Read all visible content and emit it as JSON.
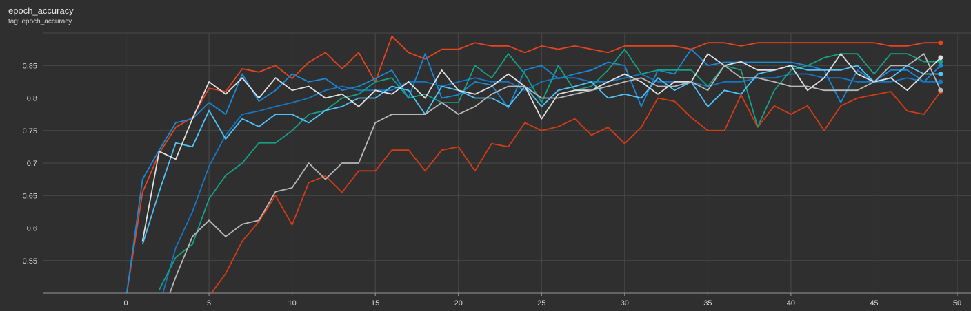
{
  "header": {
    "title": "epoch_accuracy",
    "subtitle": "tag: epoch_accuracy"
  },
  "chart_data": {
    "type": "line",
    "title": "epoch_accuracy",
    "subtitle": "tag: epoch_accuracy",
    "xlabel": "",
    "ylabel": "",
    "xlim": [
      -5,
      50
    ],
    "ylim": [
      0.5,
      0.9
    ],
    "x_ticks": [
      0,
      5,
      10,
      15,
      20,
      25,
      30,
      35,
      40,
      45,
      50
    ],
    "y_ticks": [
      0.55,
      0.6,
      0.65,
      0.7,
      0.75,
      0.8,
      0.85
    ],
    "grid": true,
    "background": "#2f2f2f",
    "series": [
      {
        "color": "#e8431f",
        "x": [
          0,
          1,
          2,
          3,
          4,
          5,
          6,
          7,
          8,
          9,
          10,
          11,
          12,
          13,
          14,
          15,
          16,
          17,
          18,
          19,
          20,
          21,
          22,
          23,
          24,
          25,
          26,
          27,
          28,
          29,
          30,
          31,
          32,
          33,
          34,
          35,
          36,
          37,
          38,
          39,
          40,
          41,
          42,
          43,
          44,
          45,
          46,
          47,
          48,
          49
        ],
        "y": [
          0.49,
          0.655,
          0.715,
          0.755,
          0.77,
          0.815,
          0.81,
          0.845,
          0.84,
          0.85,
          0.83,
          0.855,
          0.87,
          0.845,
          0.87,
          0.825,
          0.895,
          0.87,
          0.86,
          0.875,
          0.875,
          0.885,
          0.88,
          0.88,
          0.87,
          0.88,
          0.875,
          0.88,
          0.875,
          0.87,
          0.88,
          0.88,
          0.88,
          0.88,
          0.875,
          0.885,
          0.885,
          0.88,
          0.885,
          0.885,
          0.885,
          0.885,
          0.885,
          0.885,
          0.885,
          0.885,
          0.88,
          0.88,
          0.885,
          0.885
        ]
      },
      {
        "color": "#d53b15",
        "x": [
          5,
          6,
          7,
          8,
          9,
          10,
          11,
          12,
          13,
          14,
          15,
          16,
          17,
          18,
          19,
          20,
          21,
          22,
          23,
          24,
          25,
          26,
          27,
          28,
          29,
          30,
          31,
          32,
          33,
          34,
          35,
          36,
          37,
          38,
          39,
          40,
          41,
          42,
          43,
          44,
          45,
          46,
          47,
          48,
          49
        ],
        "y": [
          0.495,
          0.53,
          0.58,
          0.61,
          0.65,
          0.605,
          0.67,
          0.68,
          0.655,
          0.688,
          0.688,
          0.72,
          0.72,
          0.688,
          0.72,
          0.725,
          0.688,
          0.73,
          0.725,
          0.762,
          0.75,
          0.756,
          0.768,
          0.743,
          0.755,
          0.73,
          0.755,
          0.8,
          0.795,
          0.77,
          0.75,
          0.75,
          0.805,
          0.755,
          0.788,
          0.775,
          0.788,
          0.75,
          0.788,
          0.8,
          0.805,
          0.81,
          0.78,
          0.775,
          0.81
        ]
      },
      {
        "color": "#1a88d6",
        "x": [
          0,
          1,
          2,
          3,
          4,
          5,
          6,
          7,
          8,
          9,
          10,
          11,
          12,
          13,
          14,
          15,
          16,
          17,
          18,
          19,
          20,
          21,
          22,
          23,
          24,
          25,
          26,
          27,
          28,
          29,
          30,
          31,
          32,
          33,
          34,
          35,
          36,
          37,
          38,
          39,
          40,
          41,
          42,
          43,
          44,
          45,
          46,
          47,
          48,
          49
        ],
        "y": [
          0.49,
          0.675,
          0.72,
          0.762,
          0.768,
          0.793,
          0.775,
          0.837,
          0.795,
          0.812,
          0.837,
          0.825,
          0.83,
          0.812,
          0.818,
          0.83,
          0.843,
          0.8,
          0.868,
          0.8,
          0.805,
          0.825,
          0.82,
          0.785,
          0.843,
          0.85,
          0.83,
          0.837,
          0.843,
          0.855,
          0.85,
          0.787,
          0.843,
          0.837,
          0.875,
          0.85,
          0.855,
          0.855,
          0.855,
          0.855,
          0.855,
          0.85,
          0.843,
          0.793,
          0.843,
          0.825,
          0.843,
          0.843,
          0.825,
          0.85
        ]
      },
      {
        "color": "#1676c2",
        "x": [
          2,
          3,
          4,
          5,
          6,
          7,
          8,
          9,
          10,
          11,
          12,
          13,
          14,
          15,
          16,
          17,
          18,
          19,
          20,
          21,
          22,
          23,
          24,
          25,
          26,
          27,
          28,
          29,
          30,
          31,
          32,
          33,
          34,
          35,
          36,
          37,
          38,
          39,
          40,
          41,
          42,
          43,
          44,
          45,
          46,
          47,
          48,
          49
        ],
        "y": [
          0.48,
          0.57,
          0.625,
          0.695,
          0.743,
          0.775,
          0.78,
          0.787,
          0.793,
          0.8,
          0.812,
          0.818,
          0.812,
          0.812,
          0.812,
          0.825,
          0.825,
          0.818,
          0.825,
          0.831,
          0.825,
          0.825,
          0.812,
          0.825,
          0.831,
          0.831,
          0.825,
          0.825,
          0.831,
          0.837,
          0.825,
          0.825,
          0.825,
          0.818,
          0.825,
          0.825,
          0.831,
          0.831,
          0.837,
          0.837,
          0.831,
          0.831,
          0.825,
          0.825,
          0.825,
          0.831,
          0.825,
          0.825
        ]
      },
      {
        "color": "#16a085",
        "x": [
          2,
          3,
          4,
          5,
          6,
          7,
          8,
          9,
          10,
          11,
          12,
          13,
          14,
          15,
          16,
          17,
          18,
          19,
          20,
          21,
          22,
          23,
          24,
          25,
          26,
          27,
          28,
          29,
          30,
          31,
          32,
          33,
          34,
          35,
          36,
          37,
          38,
          39,
          40,
          41,
          42,
          43,
          44,
          45,
          46,
          47,
          48,
          49
        ],
        "y": [
          0.505,
          0.555,
          0.575,
          0.645,
          0.681,
          0.7,
          0.731,
          0.731,
          0.75,
          0.775,
          0.781,
          0.8,
          0.806,
          0.825,
          0.831,
          0.8,
          0.806,
          0.793,
          0.793,
          0.85,
          0.831,
          0.868,
          0.837,
          0.793,
          0.85,
          0.812,
          0.818,
          0.843,
          0.875,
          0.837,
          0.843,
          0.843,
          0.843,
          0.818,
          0.85,
          0.843,
          0.756,
          0.812,
          0.843,
          0.85,
          0.862,
          0.868,
          0.868,
          0.837,
          0.868,
          0.868,
          0.856,
          0.856
        ]
      },
      {
        "color": "#4fc3f7",
        "x": [
          1,
          2,
          3,
          4,
          5,
          6,
          7,
          8,
          9,
          10,
          11,
          12,
          13,
          14,
          15,
          16,
          17,
          18,
          19,
          20,
          21,
          22,
          23,
          24,
          25,
          26,
          27,
          28,
          29,
          30,
          31,
          32,
          33,
          34,
          35,
          36,
          37,
          38,
          39,
          40,
          41,
          42,
          43,
          44,
          45,
          46,
          47,
          48,
          49
        ],
        "y": [
          0.575,
          0.656,
          0.731,
          0.725,
          0.781,
          0.737,
          0.768,
          0.756,
          0.775,
          0.775,
          0.762,
          0.781,
          0.787,
          0.8,
          0.8,
          0.818,
          0.812,
          0.775,
          0.818,
          0.812,
          0.8,
          0.8,
          0.787,
          0.818,
          0.787,
          0.812,
          0.818,
          0.825,
          0.8,
          0.806,
          0.8,
          0.831,
          0.812,
          0.825,
          0.787,
          0.812,
          0.806,
          0.837,
          0.843,
          0.85,
          0.843,
          0.843,
          0.843,
          0.85,
          0.825,
          0.831,
          0.85,
          0.837,
          0.837
        ]
      },
      {
        "color": "#e0e0e0",
        "x": [
          1,
          2,
          3,
          4,
          5,
          6,
          7,
          8,
          9,
          10,
          11,
          12,
          13,
          14,
          15,
          16,
          17,
          18,
          19,
          20,
          21,
          22,
          23,
          24,
          25,
          26,
          27,
          28,
          29,
          30,
          31,
          32,
          33,
          34,
          35,
          36,
          37,
          38,
          39,
          40,
          41,
          42,
          43,
          44,
          45,
          46,
          47,
          48,
          49
        ],
        "y": [
          0.58,
          0.718,
          0.706,
          0.768,
          0.825,
          0.806,
          0.831,
          0.8,
          0.831,
          0.812,
          0.818,
          0.8,
          0.806,
          0.787,
          0.812,
          0.806,
          0.825,
          0.8,
          0.843,
          0.812,
          0.806,
          0.818,
          0.837,
          0.818,
          0.768,
          0.806,
          0.812,
          0.812,
          0.825,
          0.837,
          0.825,
          0.806,
          0.825,
          0.825,
          0.868,
          0.85,
          0.856,
          0.843,
          0.843,
          0.85,
          0.812,
          0.831,
          0.868,
          0.837,
          0.825,
          0.831,
          0.812,
          0.837,
          0.862
        ]
      },
      {
        "color": "#b8b8b8",
        "x": [
          2,
          3,
          4,
          5,
          6,
          7,
          8,
          9,
          10,
          11,
          12,
          13,
          14,
          15,
          16,
          17,
          18,
          19,
          20,
          21,
          22,
          23,
          24,
          25,
          26,
          27,
          28,
          29,
          30,
          31,
          32,
          33,
          34,
          35,
          36,
          37,
          38,
          39,
          40,
          41,
          42,
          43,
          44,
          45,
          46,
          47,
          48,
          49
        ],
        "y": [
          0.455,
          0.525,
          0.587,
          0.612,
          0.587,
          0.606,
          0.612,
          0.656,
          0.662,
          0.7,
          0.675,
          0.7,
          0.7,
          0.762,
          0.775,
          0.775,
          0.775,
          0.793,
          0.775,
          0.787,
          0.806,
          0.818,
          0.818,
          0.8,
          0.8,
          0.806,
          0.812,
          0.818,
          0.825,
          0.831,
          0.818,
          0.818,
          0.825,
          0.812,
          0.85,
          0.831,
          0.831,
          0.825,
          0.818,
          0.818,
          0.812,
          0.812,
          0.812,
          0.825,
          0.85,
          0.85,
          0.868,
          0.812
        ]
      }
    ]
  }
}
